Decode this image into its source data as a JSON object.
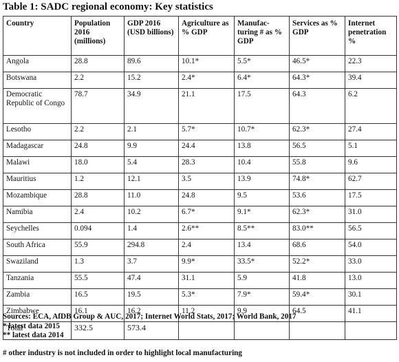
{
  "title": "Table 1:  SADC regional economy: Key statistics",
  "headers": [
    "Country",
    "Population 2016 (millions)",
    "GDP 2016 (USD billions)",
    "Agriculture as % GDP",
    "Manufac-turing # as % GDP",
    "Services as % GDP",
    "Internet penetration %"
  ],
  "rows": [
    [
      "Angola",
      "28.8",
      "89.6",
      "10.1*",
      "5.5*",
      "46.5*",
      "22.3"
    ],
    [
      "Botswana",
      "2.2",
      "15.2",
      "2.4*",
      "6.4*",
      "64.3*",
      "39.4"
    ],
    [
      "Democratic Republic of Congo",
      "78.7",
      "34.9",
      "21.1",
      "17.5",
      "64.3",
      "6.2"
    ],
    [
      "Lesotho",
      "2.2",
      "2.1",
      "5.7*",
      "10.7*",
      "62.3*",
      "27.4"
    ],
    [
      "Madagascar",
      "24.8",
      "9.9",
      "24.4",
      "13.8",
      "56.5",
      "5.1"
    ],
    [
      "Malawi",
      "18.0",
      "5.4",
      "28.3",
      "10.4",
      "55.8",
      "9.6"
    ],
    [
      "Mauritius",
      "1.2",
      "12.1",
      "3.5",
      "13.9",
      "74.8*",
      "62.7"
    ],
    [
      "Mozambique",
      "28.8",
      "11.0",
      "24.8",
      "9.5",
      "53.6",
      "17.5"
    ],
    [
      "Namibia",
      "2.4",
      "10.2",
      "6.7*",
      "9.1*",
      "62.3*",
      "31.0"
    ],
    [
      "Seychelles",
      "0.094",
      "1.4",
      "2.6**",
      "8.5**",
      "83.0**",
      "56.5"
    ],
    [
      "South Africa",
      "55.9",
      "294.8",
      "2.4",
      "13.4",
      "68.6",
      "54.0"
    ],
    [
      "Swaziland",
      "1.3",
      "3.7",
      "9.9*",
      "33.5*",
      "52.2*",
      "33.0"
    ],
    [
      "Tanzania",
      "55.5",
      "47.4",
      "31.1",
      "5.9",
      "41.8",
      "13.0"
    ],
    [
      "Zambia",
      "16.5",
      "19.5",
      "5.3*",
      "7.9*",
      "59.4*",
      "30.1"
    ],
    [
      "Zimbabwe",
      "16.1",
      "16.2",
      "11.2",
      "9.9",
      "64.5",
      "41.1"
    ]
  ],
  "total": [
    "Total",
    "332.5",
    "573.4",
    "",
    "",
    "",
    ""
  ],
  "notes": {
    "sources": "Sources: ECA, AfDB Group & AUC, 2017; Internet World Stats, 2017; World Bank, 2017",
    "note1": "* latest data 2015",
    "note2": "** latest data 2014",
    "note3": "# other industry is not included in order to highlight local manufacturing"
  }
}
